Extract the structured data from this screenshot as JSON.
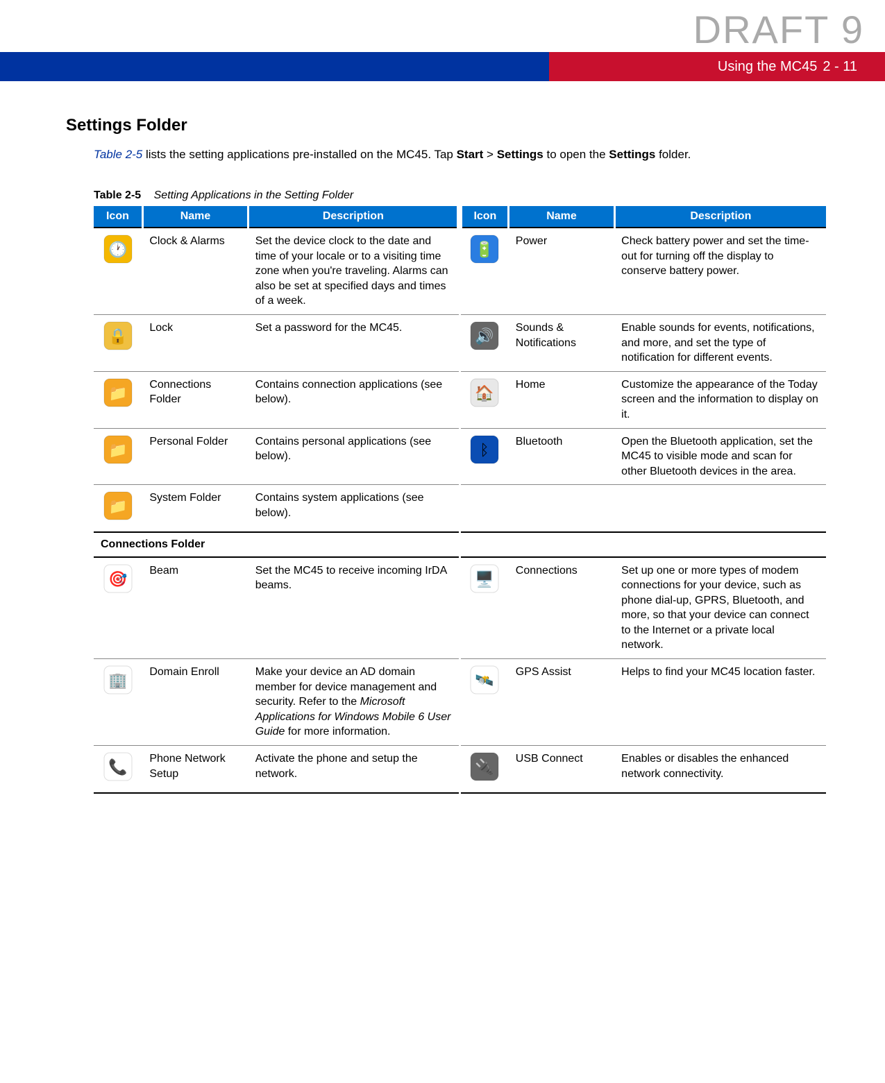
{
  "watermark": "DRAFT 9",
  "header": {
    "accent_left_color": "#0033a0",
    "accent_right_color": "#c8102e",
    "title": "Using the MC45",
    "page_ref": "2 - 11"
  },
  "section_heading": "Settings Folder",
  "intro": {
    "table_ref": "Table 2-5",
    "text_a": " lists the setting applications pre-installed on the MC45. Tap ",
    "bold1": "Start",
    "gt": " > ",
    "bold2": "Settings",
    "text_b": " to open the ",
    "bold3": "Settings",
    "text_c": " folder."
  },
  "table": {
    "number": "Table 2-5",
    "title": "Setting Applications in the Setting Folder",
    "header_bg": "#0072ce",
    "columns": [
      "Icon",
      "Name",
      "Description",
      "Icon",
      "Name",
      "Description"
    ],
    "rows": [
      {
        "left": {
          "icon": "clock-alarms-icon",
          "name": "Clock & Alarms",
          "desc": "Set the device clock to the date and time of your locale or to a visiting time zone when you're traveling. Alarms can also be set at specified days and times of a week."
        },
        "right": {
          "icon": "power-icon",
          "name": "Power",
          "desc": "Check battery power and set the time-out for turning off the display to conserve battery power."
        }
      },
      {
        "left": {
          "icon": "lock-icon",
          "name": "Lock",
          "desc": "Set a password for the MC45."
        },
        "right": {
          "icon": "sounds-icon",
          "name": "Sounds & Notifications",
          "desc": "Enable sounds for events, notifications, and more, and set the type of notification for different events."
        }
      },
      {
        "left": {
          "icon": "connections-folder-icon",
          "name": "Connections Folder",
          "desc": "Contains connection applications (see below)."
        },
        "right": {
          "icon": "home-icon",
          "name": "Home",
          "desc": "Customize the appearance of the Today screen and the information to display on it."
        }
      },
      {
        "left": {
          "icon": "personal-folder-icon",
          "name": "Personal Folder",
          "desc": "Contains personal applications (see below)."
        },
        "right": {
          "icon": "bluetooth-icon",
          "name": "Bluetooth",
          "desc": "Open the Bluetooth application, set the MC45 to visible mode and scan for other Bluetooth devices in the area."
        }
      },
      {
        "left": {
          "icon": "system-folder-icon",
          "name": "System Folder",
          "desc": "Contains system applications (see below)."
        },
        "right": {
          "icon": "",
          "name": "",
          "desc": ""
        }
      }
    ],
    "section2_title": "Connections Folder",
    "rows2": [
      {
        "left": {
          "icon": "beam-icon",
          "name": "Beam",
          "desc": "Set the MC45 to receive incoming IrDA beams."
        },
        "right": {
          "icon": "connections-icon",
          "name": "Connections",
          "desc": "Set up one or more types of modem connections for your device, such as phone dial-up, GPRS, Bluetooth, and more, so that your device can connect to the Internet or a private local network."
        }
      },
      {
        "left": {
          "icon": "domain-enroll-icon",
          "name": "Domain Enroll",
          "desc_pre": "Make your device an AD domain member for device management and security. Refer to the ",
          "desc_italic": "Microsoft Applications for Windows Mobile 6 User Guide",
          "desc_post": " for more information."
        },
        "right": {
          "icon": "gps-assist-icon",
          "name": "GPS Assist",
          "desc": "Helps to find your MC45 location faster."
        }
      },
      {
        "left": {
          "icon": "phone-network-icon",
          "name": "Phone Network Setup",
          "desc": "Activate the phone and setup the network."
        },
        "right": {
          "icon": "usb-connect-icon",
          "name": "USB Connect",
          "desc": "Enables or disables the enhanced network connectivity."
        }
      }
    ]
  },
  "icons": {
    "clock-alarms-icon": {
      "bg": "#f5b800",
      "glyph": "🕐"
    },
    "power-icon": {
      "bg": "#2a7de1",
      "glyph": "🔋"
    },
    "lock-icon": {
      "bg": "#f0c040",
      "glyph": "🔒"
    },
    "sounds-icon": {
      "bg": "#666666",
      "glyph": "🔊"
    },
    "connections-folder-icon": {
      "bg": "#f5a623",
      "glyph": "📁"
    },
    "home-icon": {
      "bg": "#e8e8e8",
      "glyph": "🏠"
    },
    "personal-folder-icon": {
      "bg": "#f5a623",
      "glyph": "📁"
    },
    "bluetooth-icon": {
      "bg": "#0a4db3",
      "glyph": "ᛒ"
    },
    "system-folder-icon": {
      "bg": "#f5a623",
      "glyph": "📁"
    },
    "beam-icon": {
      "bg": "#ffffff",
      "glyph": "🎯"
    },
    "connections-icon": {
      "bg": "#ffffff",
      "glyph": "🖥️"
    },
    "domain-enroll-icon": {
      "bg": "#ffffff",
      "glyph": "🏢"
    },
    "gps-assist-icon": {
      "bg": "#ffffff",
      "glyph": "🛰️"
    },
    "phone-network-icon": {
      "bg": "#ffffff",
      "glyph": "📞"
    },
    "usb-connect-icon": {
      "bg": "#666666",
      "glyph": "🔌"
    }
  }
}
